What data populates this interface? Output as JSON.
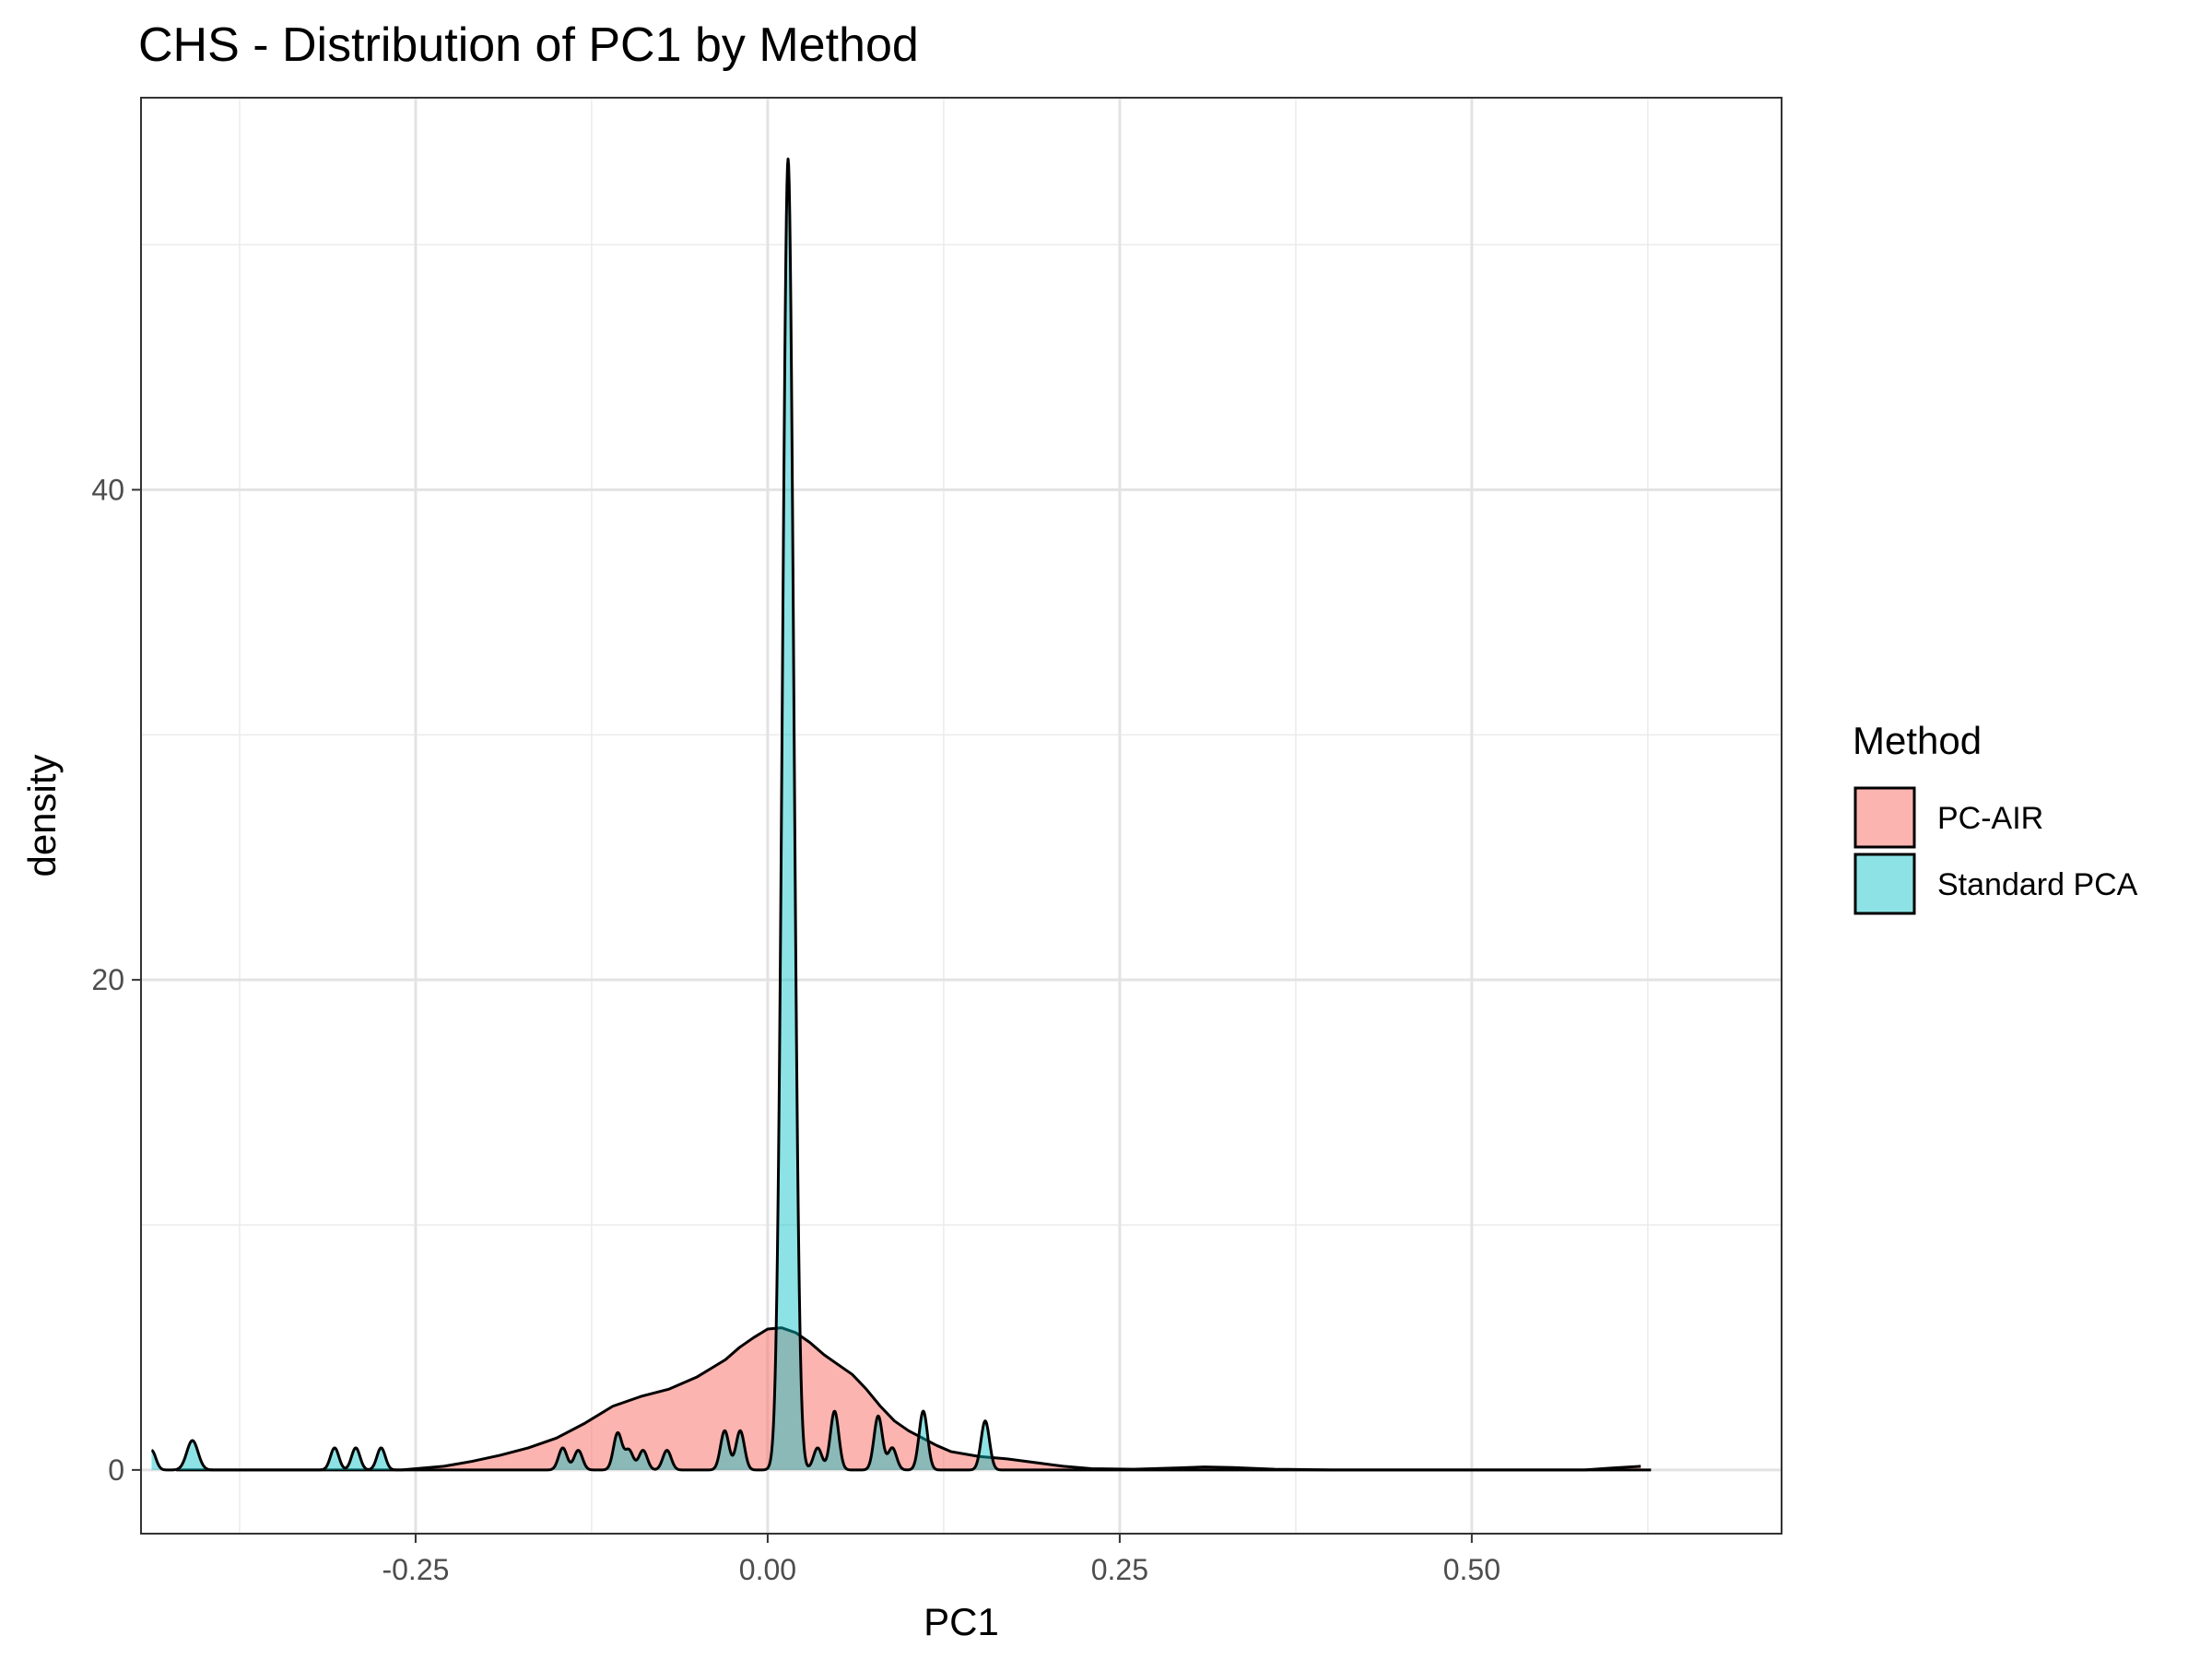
{
  "chart_data": {
    "type": "area",
    "title": "CHS - Distribution of PC1 by Method",
    "xlabel": "PC1",
    "ylabel": "density",
    "xlim": [
      -0.445,
      0.72
    ],
    "ylim": [
      -2.6,
      56.0
    ],
    "x_ticks": [
      -0.25,
      0.0,
      0.25,
      0.5
    ],
    "x_tick_labels": [
      "-0.25",
      "0.00",
      "0.25",
      "0.50"
    ],
    "x_minor_ticks": [
      -0.375,
      -0.125,
      0.125,
      0.375,
      0.625
    ],
    "y_ticks": [
      0,
      20,
      40
    ],
    "y_tick_labels": [
      "0",
      "20",
      "40"
    ],
    "y_minor_ticks": [
      10,
      30,
      50
    ],
    "grid": true,
    "legend": {
      "title": "Method",
      "position": "right"
    },
    "series": [
      {
        "name": "PC-AIR",
        "color": "#F8766D",
        "points": [
          [
            -0.42,
            0.0
          ],
          [
            -0.3,
            0.0
          ],
          [
            -0.26,
            0.0
          ],
          [
            -0.23,
            0.15
          ],
          [
            -0.21,
            0.35
          ],
          [
            -0.19,
            0.6
          ],
          [
            -0.17,
            0.9
          ],
          [
            -0.15,
            1.3
          ],
          [
            -0.13,
            1.9
          ],
          [
            -0.11,
            2.6
          ],
          [
            -0.09,
            3.0
          ],
          [
            -0.07,
            3.3
          ],
          [
            -0.05,
            3.8
          ],
          [
            -0.03,
            4.5
          ],
          [
            -0.02,
            5.0
          ],
          [
            -0.01,
            5.4
          ],
          [
            0.0,
            5.75
          ],
          [
            0.01,
            5.8
          ],
          [
            0.02,
            5.6
          ],
          [
            0.03,
            5.2
          ],
          [
            0.04,
            4.7
          ],
          [
            0.05,
            4.3
          ],
          [
            0.06,
            3.9
          ],
          [
            0.07,
            3.3
          ],
          [
            0.08,
            2.6
          ],
          [
            0.09,
            2.0
          ],
          [
            0.1,
            1.6
          ],
          [
            0.11,
            1.3
          ],
          [
            0.12,
            1.0
          ],
          [
            0.13,
            0.75
          ],
          [
            0.15,
            0.55
          ],
          [
            0.17,
            0.45
          ],
          [
            0.19,
            0.3
          ],
          [
            0.21,
            0.15
          ],
          [
            0.23,
            0.05
          ],
          [
            0.26,
            0.03
          ],
          [
            0.29,
            0.08
          ],
          [
            0.31,
            0.12
          ],
          [
            0.33,
            0.1
          ],
          [
            0.36,
            0.03
          ],
          [
            0.4,
            0.0
          ],
          [
            0.5,
            0.0
          ],
          [
            0.58,
            0.0
          ],
          [
            0.6,
            0.08
          ],
          [
            0.62,
            0.15
          ]
        ]
      },
      {
        "name": "Standard PCA",
        "color": "#00BFC4",
        "base": [
          -0.4375,
          0.6275
        ],
        "peaks": [
          {
            "x": -0.4375,
            "h": 0.8,
            "w": 0.003
          },
          {
            "x": -0.4085,
            "h": 1.2,
            "w": 0.004
          },
          {
            "x": -0.3075,
            "h": 0.9,
            "w": 0.003
          },
          {
            "x": -0.2925,
            "h": 0.9,
            "w": 0.003
          },
          {
            "x": -0.2745,
            "h": 0.9,
            "w": 0.003
          },
          {
            "x": -0.1455,
            "h": 0.9,
            "w": 0.003
          },
          {
            "x": -0.1345,
            "h": 0.8,
            "w": 0.003
          },
          {
            "x": -0.1065,
            "h": 1.5,
            "w": 0.003
          },
          {
            "x": -0.0985,
            "h": 0.8,
            "w": 0.003
          },
          {
            "x": -0.0885,
            "h": 0.8,
            "w": 0.003
          },
          {
            "x": -0.0715,
            "h": 0.8,
            "w": 0.003
          },
          {
            "x": -0.0305,
            "h": 1.6,
            "w": 0.003
          },
          {
            "x": -0.0195,
            "h": 1.6,
            "w": 0.003
          },
          {
            "x": 0.0145,
            "h": 53.5,
            "w": 0.004
          },
          {
            "x": 0.0355,
            "h": 0.9,
            "w": 0.003
          },
          {
            "x": 0.0475,
            "h": 2.4,
            "w": 0.003
          },
          {
            "x": 0.0785,
            "h": 2.2,
            "w": 0.003
          },
          {
            "x": 0.0885,
            "h": 0.9,
            "w": 0.003
          },
          {
            "x": 0.1105,
            "h": 2.4,
            "w": 0.003
          },
          {
            "x": 0.1545,
            "h": 2.0,
            "w": 0.003
          }
        ]
      }
    ]
  }
}
